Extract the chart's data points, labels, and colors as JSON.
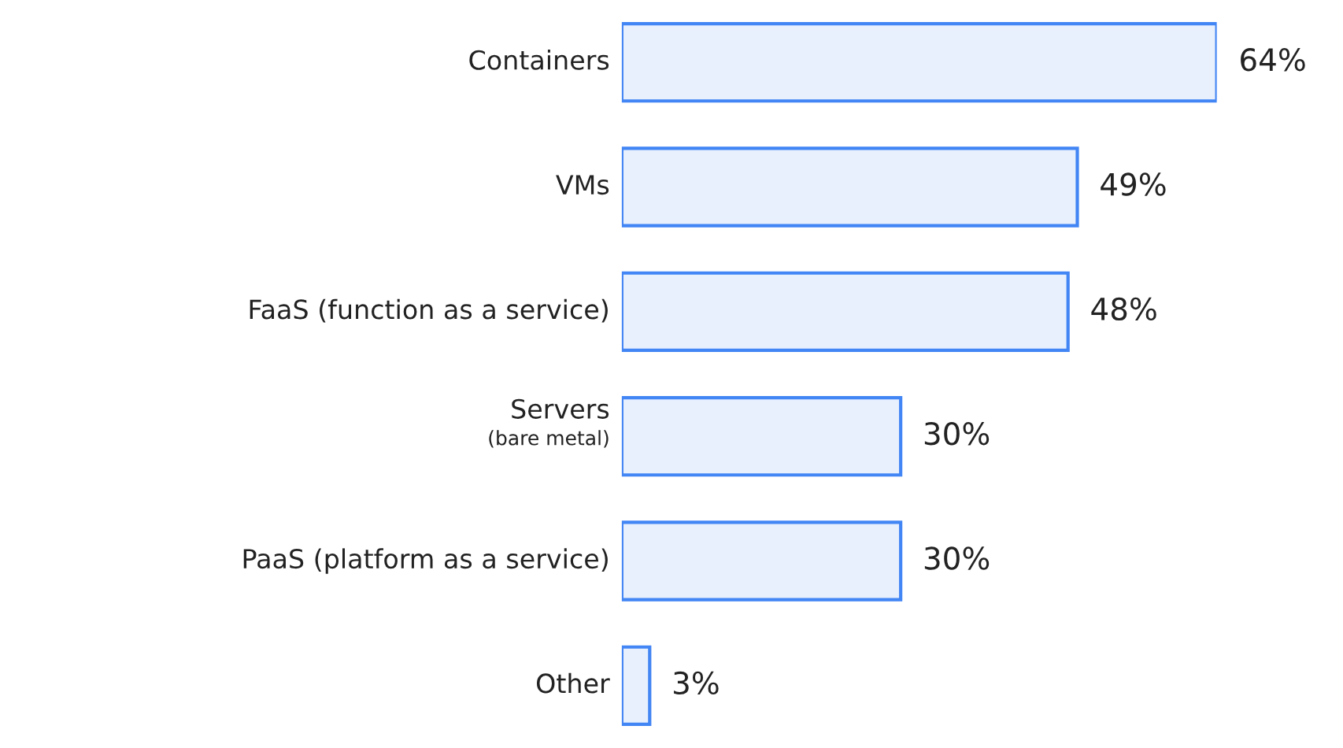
{
  "chart_data": {
    "type": "bar",
    "orientation": "horizontal",
    "categories": [
      "Containers",
      "VMs",
      "FaaS (function as a service)",
      "Servers\n(bare metal)",
      "PaaS (platform as a service)",
      "Other"
    ],
    "values": [
      64,
      49,
      48,
      30,
      30,
      3
    ],
    "value_labels": [
      "64%",
      "49%",
      "48%",
      "30%",
      "30%",
      "3%"
    ],
    "color": "#4285f4"
  }
}
